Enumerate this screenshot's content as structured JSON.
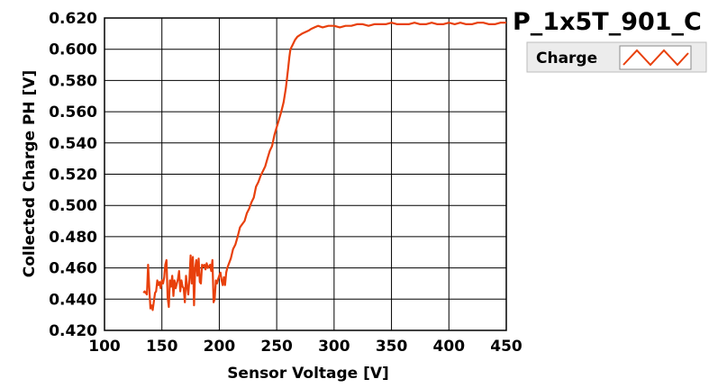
{
  "chart_data": {
    "type": "line",
    "title": "P_1x5T_901_C",
    "xlabel": "Sensor Voltage [V]",
    "ylabel": "Collected Charge PH [V]",
    "xlim": [
      100,
      450
    ],
    "ylim": [
      0.42,
      0.62
    ],
    "xticks": [
      "100",
      "150",
      "200",
      "250",
      "300",
      "350",
      "400",
      "450"
    ],
    "yticks": [
      "0.420",
      "0.440",
      "0.460",
      "0.480",
      "0.500",
      "0.520",
      "0.540",
      "0.560",
      "0.580",
      "0.600",
      "0.620"
    ],
    "grid": true,
    "legend_position": "top-right",
    "colors": {
      "series": "#e8400c",
      "grid": "#000000",
      "background": "#ffffff"
    },
    "series": [
      {
        "name": "Charge",
        "x": [
          134,
          135,
          137,
          138,
          139,
          140,
          141,
          142,
          144,
          145,
          146,
          147,
          148,
          149,
          150,
          151,
          152,
          153,
          154,
          155,
          156,
          157,
          158,
          159,
          160,
          161,
          162,
          163,
          164,
          165,
          166,
          167,
          168,
          169,
          170,
          171,
          172,
          173,
          174,
          175,
          176,
          177,
          178,
          179,
          180,
          181,
          182,
          183,
          184,
          185,
          186,
          187,
          188,
          189,
          190,
          191,
          192,
          193,
          194,
          195,
          196,
          197,
          198,
          199,
          200,
          201,
          202,
          203,
          204,
          205,
          206,
          207,
          208,
          210,
          212,
          214,
          216,
          218,
          220,
          222,
          224,
          226,
          228,
          230,
          232,
          234,
          236,
          238,
          240,
          242,
          244,
          246,
          248,
          250,
          252,
          254,
          256,
          258,
          260,
          261,
          262,
          264,
          266,
          268,
          270,
          272,
          275,
          278,
          280,
          283,
          286,
          290,
          295,
          300,
          305,
          310,
          315,
          320,
          325,
          330,
          335,
          340,
          345,
          350,
          355,
          360,
          365,
          370,
          375,
          380,
          385,
          390,
          395,
          400,
          405,
          410,
          415,
          420,
          425,
          430,
          435,
          440,
          445,
          450
        ],
        "values": [
          0.444,
          0.445,
          0.443,
          0.462,
          0.447,
          0.434,
          0.436,
          0.433,
          0.444,
          0.445,
          0.452,
          0.449,
          0.451,
          0.447,
          0.452,
          0.45,
          0.454,
          0.462,
          0.465,
          0.441,
          0.435,
          0.452,
          0.448,
          0.455,
          0.442,
          0.452,
          0.447,
          0.45,
          0.453,
          0.458,
          0.445,
          0.452,
          0.448,
          0.447,
          0.438,
          0.455,
          0.448,
          0.443,
          0.453,
          0.468,
          0.45,
          0.467,
          0.436,
          0.46,
          0.465,
          0.455,
          0.466,
          0.451,
          0.45,
          0.462,
          0.461,
          0.462,
          0.459,
          0.463,
          0.46,
          0.461,
          0.462,
          0.458,
          0.465,
          0.438,
          0.44,
          0.452,
          0.45,
          0.453,
          0.455,
          0.457,
          0.452,
          0.449,
          0.454,
          0.449,
          0.457,
          0.46,
          0.462,
          0.466,
          0.472,
          0.475,
          0.48,
          0.486,
          0.488,
          0.49,
          0.495,
          0.498,
          0.502,
          0.505,
          0.512,
          0.515,
          0.519,
          0.522,
          0.525,
          0.53,
          0.535,
          0.538,
          0.545,
          0.55,
          0.555,
          0.56,
          0.566,
          0.575,
          0.588,
          0.595,
          0.6,
          0.603,
          0.606,
          0.608,
          0.609,
          0.61,
          0.611,
          0.612,
          0.613,
          0.614,
          0.615,
          0.614,
          0.615,
          0.615,
          0.614,
          0.615,
          0.615,
          0.616,
          0.616,
          0.615,
          0.616,
          0.616,
          0.616,
          0.617,
          0.616,
          0.616,
          0.616,
          0.617,
          0.616,
          0.616,
          0.617,
          0.616,
          0.616,
          0.617,
          0.616,
          0.617,
          0.616,
          0.616,
          0.617,
          0.617,
          0.616,
          0.616,
          0.617,
          0.617
        ]
      }
    ]
  }
}
